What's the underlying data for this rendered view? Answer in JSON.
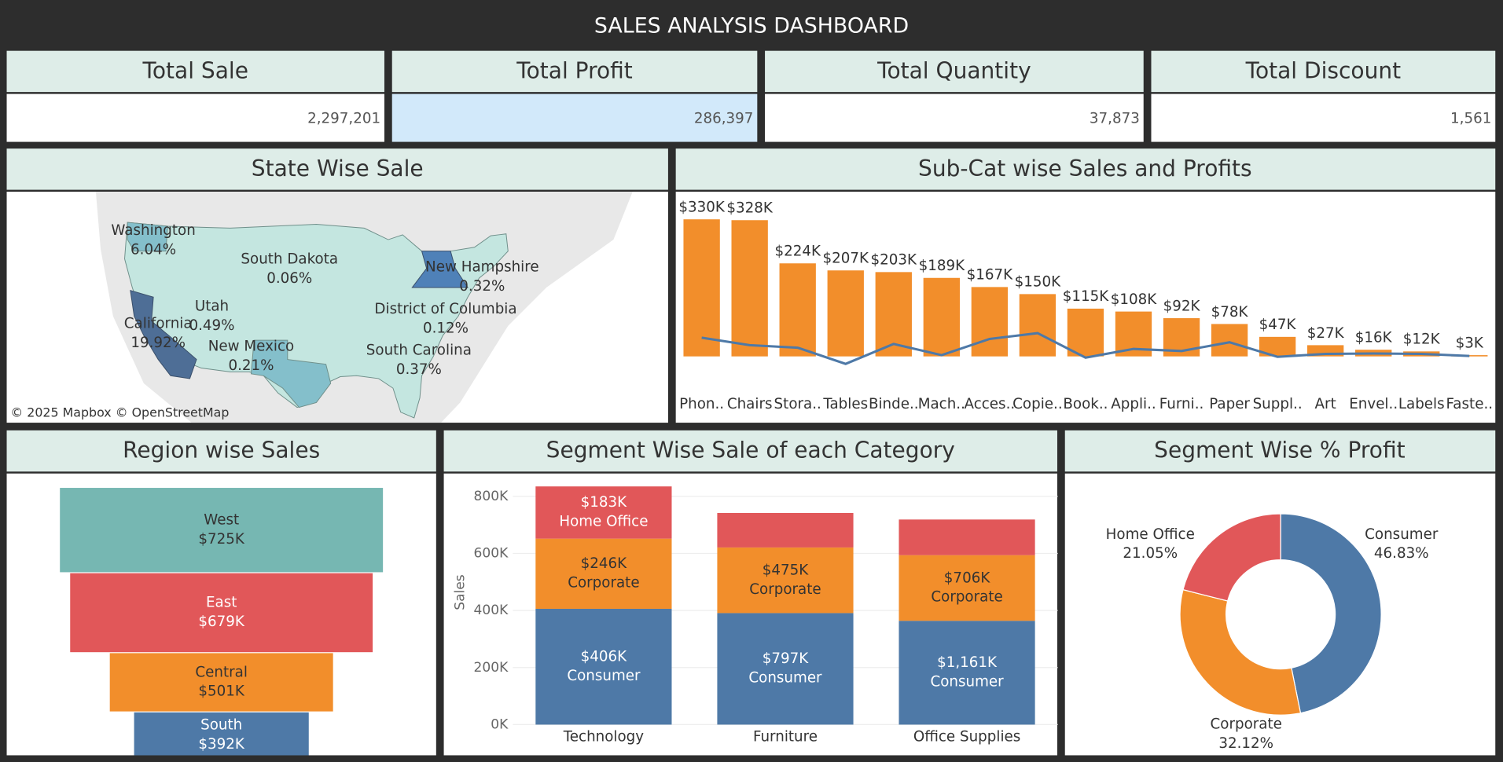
{
  "header": {
    "title": "SALES ANALYSIS DASHBOARD"
  },
  "kpis": [
    {
      "title": "Total Sale",
      "value": "2,297,201"
    },
    {
      "title": "Total Profit",
      "value": "286,397"
    },
    {
      "title": "Total Quantity",
      "value": "37,873"
    },
    {
      "title": "Total Discount",
      "value": "1,561"
    }
  ],
  "map": {
    "title": "State Wise Sale",
    "labels": [
      {
        "state": "Washington",
        "share": "6.04%"
      },
      {
        "state": "South Dakota",
        "share": "0.06%"
      },
      {
        "state": "New Hampshire",
        "share": "0.32%"
      },
      {
        "state": "Utah",
        "share": "0.49%"
      },
      {
        "state": "California",
        "share": "19.92%"
      },
      {
        "state": "District of Columbia",
        "share": "0.12%"
      },
      {
        "state": "New Mexico",
        "share": "0.21%"
      },
      {
        "state": "South Carolina",
        "share": "0.37%"
      }
    ],
    "attribution": "© 2025 Mapbox © OpenStreetMap"
  },
  "chart_data": [
    {
      "type": "bar",
      "title": "Sub-Cat wise Sales and Profits",
      "categories": [
        "Phon..",
        "Chairs",
        "Stora..",
        "Tables",
        "Binde..",
        "Mach..",
        "Acces..",
        "Copie..",
        "Book..",
        "Appli..",
        "Furni..",
        "Paper",
        "Suppl..",
        "Art",
        "Envel..",
        "Labels",
        "Faste.."
      ],
      "values": [
        330000,
        328000,
        224000,
        207000,
        203000,
        189000,
        167000,
        150000,
        115000,
        108000,
        92000,
        78000,
        47000,
        27000,
        16000,
        12000,
        3000
      ],
      "value_labels": [
        "$330K",
        "$328K",
        "$224K",
        "$207K",
        "$203K",
        "$189K",
        "$167K",
        "$150K",
        "$115K",
        "$108K",
        "$92K",
        "$78K",
        "$47K",
        "$27K",
        "$16K",
        "$12K",
        "$3K"
      ],
      "color": "#f28e2b",
      "line": {
        "values": [
          45000,
          27000,
          21000,
          -18000,
          30000,
          3000,
          42000,
          56000,
          -3000,
          18000,
          13000,
          34000,
          -1000,
          6000,
          7000,
          6000,
          1000
        ],
        "color": "#4e79a7"
      },
      "ylim": [
        -65000,
        385000
      ]
    },
    {
      "type": "funnel",
      "title": "Region wise Sales",
      "categories": [
        "West",
        "East",
        "Central",
        "South"
      ],
      "values": [
        725000,
        679000,
        501000,
        392000
      ],
      "value_labels": [
        "$725K",
        "$679K",
        "$501K",
        "$392K"
      ],
      "colors": [
        "#76b7b2",
        "#e15759",
        "#f28e2b",
        "#4e79a7"
      ]
    },
    {
      "type": "stacked_bar",
      "title": "Segment Wise Sale of each Category",
      "categories": [
        "Technology",
        "Furniture",
        "Office Supplies"
      ],
      "series": [
        {
          "name": "Consumer",
          "color": "#4e79a7",
          "values": [
            406000,
            391000,
            364000
          ],
          "labels": [
            "$406K",
            "$797K",
            "$1,161K"
          ]
        },
        {
          "name": "Corporate",
          "color": "#f28e2b",
          "values": [
            246000,
            230000,
            230000
          ],
          "labels": [
            "$246K",
            "$475K",
            "$706K"
          ]
        },
        {
          "name": "Home Office",
          "color": "#e15759",
          "values": [
            183000,
            121000,
            125000
          ],
          "labels": [
            "$183K",
            null,
            null
          ]
        }
      ],
      "y_label": "Sales",
      "ylim": [
        0,
        840000
      ],
      "yticks": [
        {
          "value": 0,
          "label": "0K"
        },
        {
          "value": 200000,
          "label": "200K"
        },
        {
          "value": 400000,
          "label": "400K"
        },
        {
          "value": 600000,
          "label": "600K"
        },
        {
          "value": 800000,
          "label": "800K"
        }
      ],
      "grid": true
    },
    {
      "type": "donut",
      "title": "Segment Wise % Profit",
      "categories": [
        "Consumer",
        "Corporate",
        "Home Office"
      ],
      "values": [
        46.83,
        32.12,
        21.05
      ],
      "value_labels": [
        "46.83%",
        "32.12%",
        "21.05%"
      ],
      "colors": [
        "#4e79a7",
        "#f28e2b",
        "#e15759"
      ]
    }
  ]
}
